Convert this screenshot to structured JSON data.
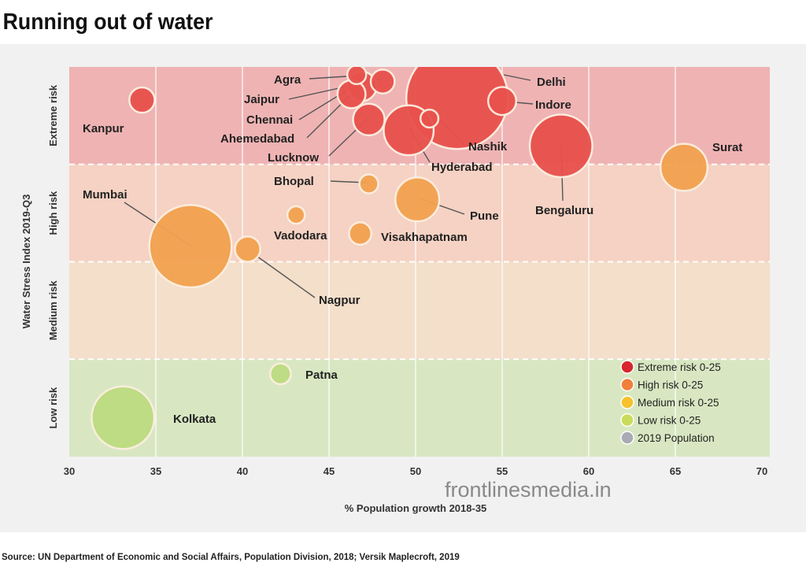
{
  "chart_data": {
    "type": "scatter",
    "subtype": "bubble",
    "title": "Running out of water",
    "xlabel": "% Population growth 2018-35",
    "ylabel": "Water Stress Index 2019-Q3",
    "xlim": [
      30,
      70
    ],
    "xticks": [
      30,
      35,
      40,
      45,
      50,
      55,
      60,
      65,
      70
    ],
    "ylim": [
      0,
      4
    ],
    "y_bands": [
      {
        "label": "Low risk",
        "range": [
          0,
          1
        ],
        "color": "#d8e7c2"
      },
      {
        "label": "Medium risk",
        "range": [
          1,
          2
        ],
        "color": "#f3dfca"
      },
      {
        "label": "High risk",
        "range": [
          2,
          3
        ],
        "color": "#f5d2c3"
      },
      {
        "label": "Extreme risk",
        "range": [
          3,
          4
        ],
        "color": "#efb3b3"
      }
    ],
    "grid": true,
    "legend_position": "bottom-right",
    "legend": [
      {
        "label": "Extreme risk 0-25",
        "color": "#d7262e"
      },
      {
        "label": "High risk 0-25",
        "color": "#f07f3a"
      },
      {
        "label": "Medium risk 0-25",
        "color": "#f6c12c"
      },
      {
        "label": "Low risk 0-25",
        "color": "#c9dc5a"
      },
      {
        "label": "2019 Population",
        "color": "#a9abb5"
      }
    ],
    "category_colors": {
      "extreme": "#e8514c",
      "high": "#f2a24f",
      "low": "#bcdc80"
    },
    "points": [
      {
        "city": "Kanpur",
        "x": 34.2,
        "y": 3.66,
        "population": 1.8,
        "risk": "extreme"
      },
      {
        "city": "Agra",
        "x": 46.6,
        "y": 3.92,
        "population": 1.0,
        "risk": "extreme"
      },
      {
        "city": "Jaipur",
        "x": 48.1,
        "y": 3.85,
        "population": 1.6,
        "risk": "extreme"
      },
      {
        "city": "Chennai",
        "x": 46.9,
        "y": 3.8,
        "population": 2.4,
        "risk": "extreme"
      },
      {
        "city": "Ahemedabad",
        "x": 47.3,
        "y": 3.46,
        "population": 2.8,
        "risk": "extreme"
      },
      {
        "city": "Lucknow",
        "x": 46.3,
        "y": 3.72,
        "population": 2.2,
        "risk": "extreme"
      },
      {
        "city": "Delhi",
        "x": 52.4,
        "y": 3.68,
        "population": 29.0,
        "risk": "extreme"
      },
      {
        "city": "Indore",
        "x": 55.0,
        "y": 3.65,
        "population": 2.2,
        "risk": "extreme"
      },
      {
        "city": "Nashik",
        "x": 50.8,
        "y": 3.47,
        "population": 0.9,
        "risk": "extreme"
      },
      {
        "city": "Hyderabad",
        "x": 49.6,
        "y": 3.35,
        "population": 7.0,
        "risk": "extreme"
      },
      {
        "city": "Bengaluru",
        "x": 58.4,
        "y": 3.19,
        "population": 11.0,
        "risk": "extreme"
      },
      {
        "city": "Surat",
        "x": 65.5,
        "y": 2.97,
        "population": 6.2,
        "risk": "high"
      },
      {
        "city": "Bhopal",
        "x": 47.3,
        "y": 2.8,
        "population": 1.0,
        "risk": "high"
      },
      {
        "city": "Pune",
        "x": 50.1,
        "y": 2.64,
        "population": 5.4,
        "risk": "high"
      },
      {
        "city": "Vadodara",
        "x": 43.1,
        "y": 2.48,
        "population": 0.85,
        "risk": "high"
      },
      {
        "city": "Visakhapatnam",
        "x": 46.8,
        "y": 2.29,
        "population": 1.4,
        "risk": "high"
      },
      {
        "city": "Mumbai",
        "x": 37.0,
        "y": 2.16,
        "population": 19.0,
        "risk": "high"
      },
      {
        "city": "Nagpur",
        "x": 40.3,
        "y": 2.13,
        "population": 1.8,
        "risk": "high"
      },
      {
        "city": "Patna",
        "x": 42.2,
        "y": 0.85,
        "population": 1.2,
        "risk": "low"
      },
      {
        "city": "Kolkata",
        "x": 33.1,
        "y": 0.4,
        "population": 11.0,
        "risk": "low"
      }
    ]
  },
  "watermark": "frontlinesmedia.in",
  "source": "Source: UN Department of Economic and Social Affairs, Population Division, 2018; Versik Maplecroft, 2019"
}
